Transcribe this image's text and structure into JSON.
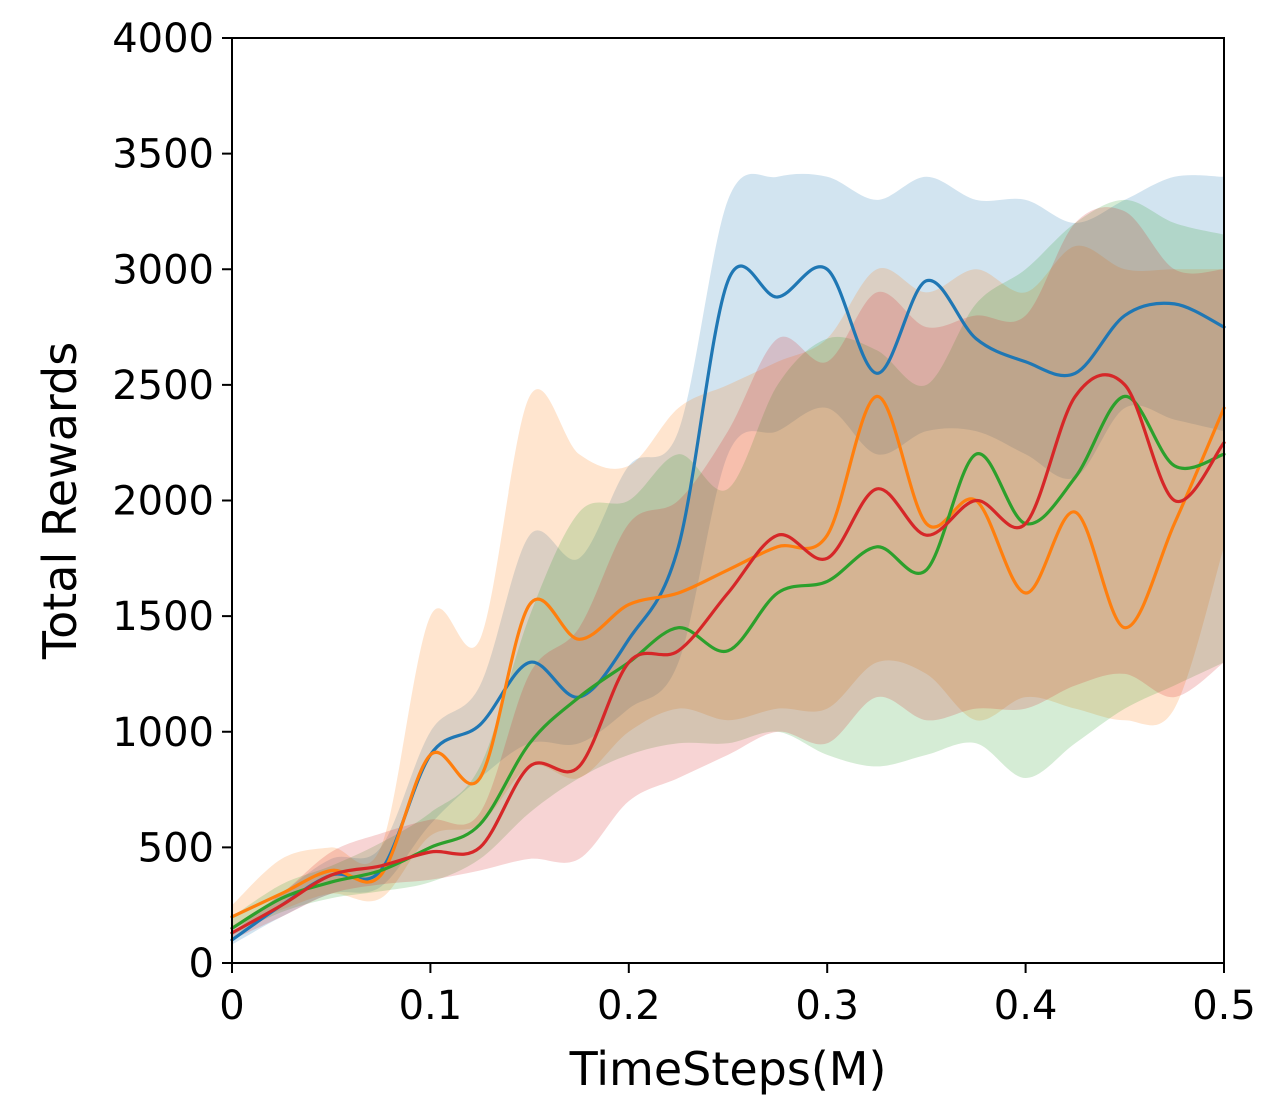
{
  "chart_data": {
    "type": "line",
    "title": "",
    "xlabel": "TimeSteps(M)",
    "ylabel": "Total Rewards",
    "xlim": [
      0,
      0.5
    ],
    "ylim": [
      0,
      4000
    ],
    "xticks": [
      "0",
      "0.1",
      "0.2",
      "0.3",
      "0.4",
      "0.5"
    ],
    "xtick_values": [
      0,
      0.1,
      0.2,
      0.3,
      0.4,
      0.5
    ],
    "yticks": [
      "0",
      "500",
      "1000",
      "1500",
      "2000",
      "2500",
      "3000",
      "3500",
      "4000"
    ],
    "ytick_values": [
      0,
      500,
      1000,
      1500,
      2000,
      2500,
      3000,
      3500,
      4000
    ],
    "grid": false,
    "legend": "none",
    "x": [
      0,
      0.025,
      0.05,
      0.075,
      0.1,
      0.125,
      0.15,
      0.175,
      0.2,
      0.225,
      0.25,
      0.275,
      0.3,
      0.325,
      0.35,
      0.375,
      0.4,
      0.425,
      0.45,
      0.475,
      0.5
    ],
    "series": [
      {
        "color": "#1f77b4",
        "values": [
          100,
          250,
          380,
          400,
          900,
          1030,
          1300,
          1150,
          1400,
          1800,
          2950,
          2880,
          3000,
          2550,
          2950,
          2700,
          2600,
          2550,
          2800,
          2850,
          2750
        ],
        "lower": [
          80,
          200,
          300,
          330,
          600,
          800,
          950,
          950,
          1100,
          1300,
          2200,
          2300,
          2400,
          2200,
          2300,
          2300,
          2200,
          2100,
          2400,
          2350,
          2300
        ],
        "upper": [
          130,
          300,
          450,
          500,
          1000,
          1200,
          1850,
          1750,
          2150,
          2300,
          3300,
          3400,
          3400,
          3300,
          3400,
          3300,
          3300,
          3200,
          3300,
          3400,
          3400
        ]
      },
      {
        "color": "#ff7f0e",
        "values": [
          200,
          300,
          400,
          380,
          900,
          800,
          1550,
          1400,
          1550,
          1600,
          1700,
          1800,
          1850,
          2450,
          1900,
          2000,
          1600,
          1950,
          1450,
          1900,
          2400
        ],
        "lower": [
          150,
          230,
          300,
          280,
          550,
          600,
          850,
          800,
          1000,
          1100,
          1050,
          1100,
          1100,
          1300,
          1250,
          1050,
          1150,
          1100,
          1050,
          1100,
          1800
        ],
        "upper": [
          250,
          450,
          500,
          500,
          1500,
          1400,
          2450,
          2200,
          2150,
          2400,
          2500,
          2600,
          2700,
          3000,
          2900,
          3000,
          2900,
          3100,
          3000,
          3000,
          3000
        ]
      },
      {
        "color": "#2ca02c",
        "values": [
          150,
          280,
          350,
          400,
          500,
          600,
          950,
          1150,
          1300,
          1450,
          1350,
          1600,
          1650,
          1800,
          1700,
          2200,
          1900,
          2100,
          2450,
          2150,
          2200
        ],
        "lower": [
          120,
          220,
          280,
          310,
          350,
          450,
          650,
          800,
          900,
          950,
          950,
          1000,
          900,
          850,
          900,
          950,
          800,
          950,
          1100,
          1200,
          1300
        ],
        "upper": [
          200,
          340,
          420,
          520,
          650,
          850,
          1500,
          1950,
          2000,
          2200,
          2050,
          2500,
          2700,
          2650,
          2500,
          2850,
          3000,
          3200,
          3300,
          3200,
          3150
        ]
      },
      {
        "color": "#d62728",
        "values": [
          130,
          250,
          380,
          420,
          480,
          500,
          850,
          850,
          1300,
          1350,
          1600,
          1850,
          1750,
          2050,
          1850,
          2000,
          1900,
          2450,
          2500,
          2000,
          2250
        ],
        "lower": [
          100,
          200,
          300,
          340,
          360,
          400,
          450,
          450,
          700,
          800,
          900,
          1000,
          950,
          1150,
          1050,
          1100,
          1100,
          1200,
          1250,
          1150,
          1300
        ],
        "upper": [
          160,
          300,
          480,
          560,
          620,
          650,
          1250,
          1450,
          1900,
          2000,
          2300,
          2700,
          2600,
          2900,
          2750,
          2800,
          2800,
          3200,
          3250,
          3000,
          3000
        ]
      }
    ]
  }
}
